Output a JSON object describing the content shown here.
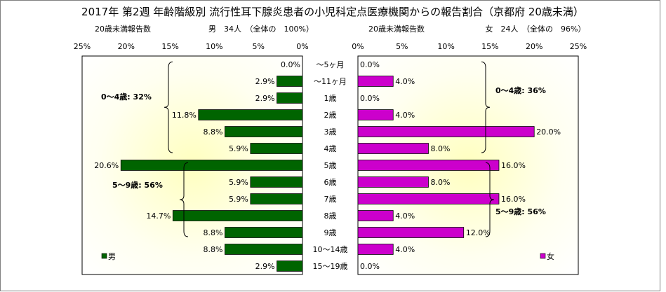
{
  "chart_data": {
    "type": "bar",
    "title": "2017年 第2週 年齢階級別 流行性耳下腺炎患者の小児科定点医療機関からの報告割合（京都府 20歳未満）",
    "categories": [
      "～5ヶ月",
      "～11ヶ月",
      "1歳",
      "2歳",
      "3歳",
      "4歳",
      "5歳",
      "6歳",
      "7歳",
      "8歳",
      "9歳",
      "10～14歳",
      "15～19歳"
    ],
    "xlim": [
      0,
      25
    ],
    "ticks": [
      "0%",
      "5%",
      "10%",
      "15%",
      "20%",
      "25%"
    ],
    "series": [
      {
        "name": "男",
        "side": "left",
        "header_label": "20歳未満報告数",
        "header_count": "男　34人　（全体の　100%）",
        "color": "#006400",
        "values": [
          0.0,
          2.9,
          2.9,
          11.8,
          8.8,
          5.9,
          20.6,
          5.9,
          5.9,
          14.7,
          8.8,
          8.8,
          2.9
        ],
        "labels": [
          "0.0%",
          "2.9%",
          "2.9%",
          "11.8%",
          "8.8%",
          "5.9%",
          "20.6%",
          "5.9%",
          "5.9%",
          "14.7%",
          "8.8%",
          "8.8%",
          "2.9%"
        ],
        "brackets": [
          {
            "label": "0～4歳: 32%",
            "from": 0,
            "to": 5
          },
          {
            "label": "5～9歳: 56%",
            "from": 6,
            "to": 10
          }
        ]
      },
      {
        "name": "女",
        "side": "right",
        "header_label": "20歳未満報告数",
        "header_count": "女　24人　（全体の　96%）",
        "color": "#CC00CC",
        "values": [
          0.0,
          4.0,
          0.0,
          4.0,
          20.0,
          8.0,
          16.0,
          8.0,
          16.0,
          4.0,
          12.0,
          4.0,
          0.0
        ],
        "labels": [
          "0.0%",
          "4.0%",
          "0.0%",
          "4.0%",
          "20.0%",
          "8.0%",
          "16.0%",
          "8.0%",
          "16.0%",
          "4.0%",
          "12.0%",
          "4.0%",
          "0.0%"
        ],
        "brackets": [
          {
            "label": "0～4歳: 36%",
            "from": 0,
            "to": 5
          },
          {
            "label": "5～9歳: 56%",
            "from": 6,
            "to": 10
          }
        ]
      }
    ],
    "legend_position": "bottom-left / bottom-right",
    "grid": false
  }
}
